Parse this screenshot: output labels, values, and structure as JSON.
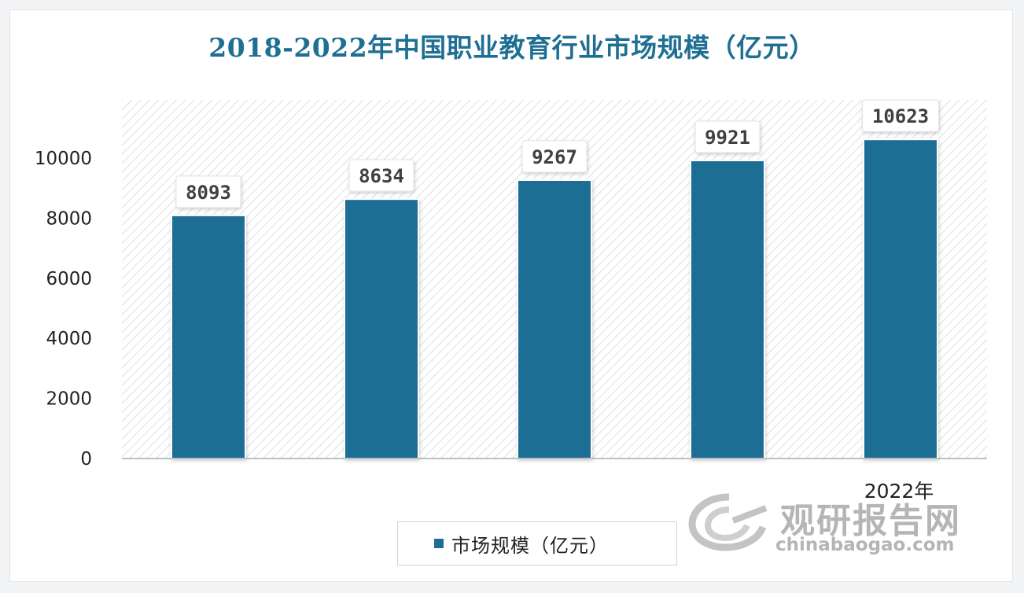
{
  "chart_data": {
    "type": "bar",
    "title": "2018-2022年中国职业教育行业市场规模（亿元）",
    "categories": [
      "",
      "",
      "",
      "",
      "2022年"
    ],
    "series": [
      {
        "name": "市场规模（亿元）",
        "values": [
          8093,
          8634,
          9267,
          9921,
          10623
        ]
      }
    ],
    "data_labels": [
      "8093",
      "8634",
      "9267",
      "9921",
      "10623"
    ],
    "y_ticks": [
      "0",
      "2000",
      "4000",
      "6000",
      "8000",
      "10000"
    ],
    "ylim": [
      0,
      12000
    ],
    "legend": "bottom",
    "grid": false,
    "colors": {
      "bar": "#1e6e94",
      "title": "#1f6f93",
      "plot_bg": "#eef0f2"
    }
  },
  "watermark": {
    "cn": "观研报告网",
    "en": "chinabaogao.com"
  }
}
